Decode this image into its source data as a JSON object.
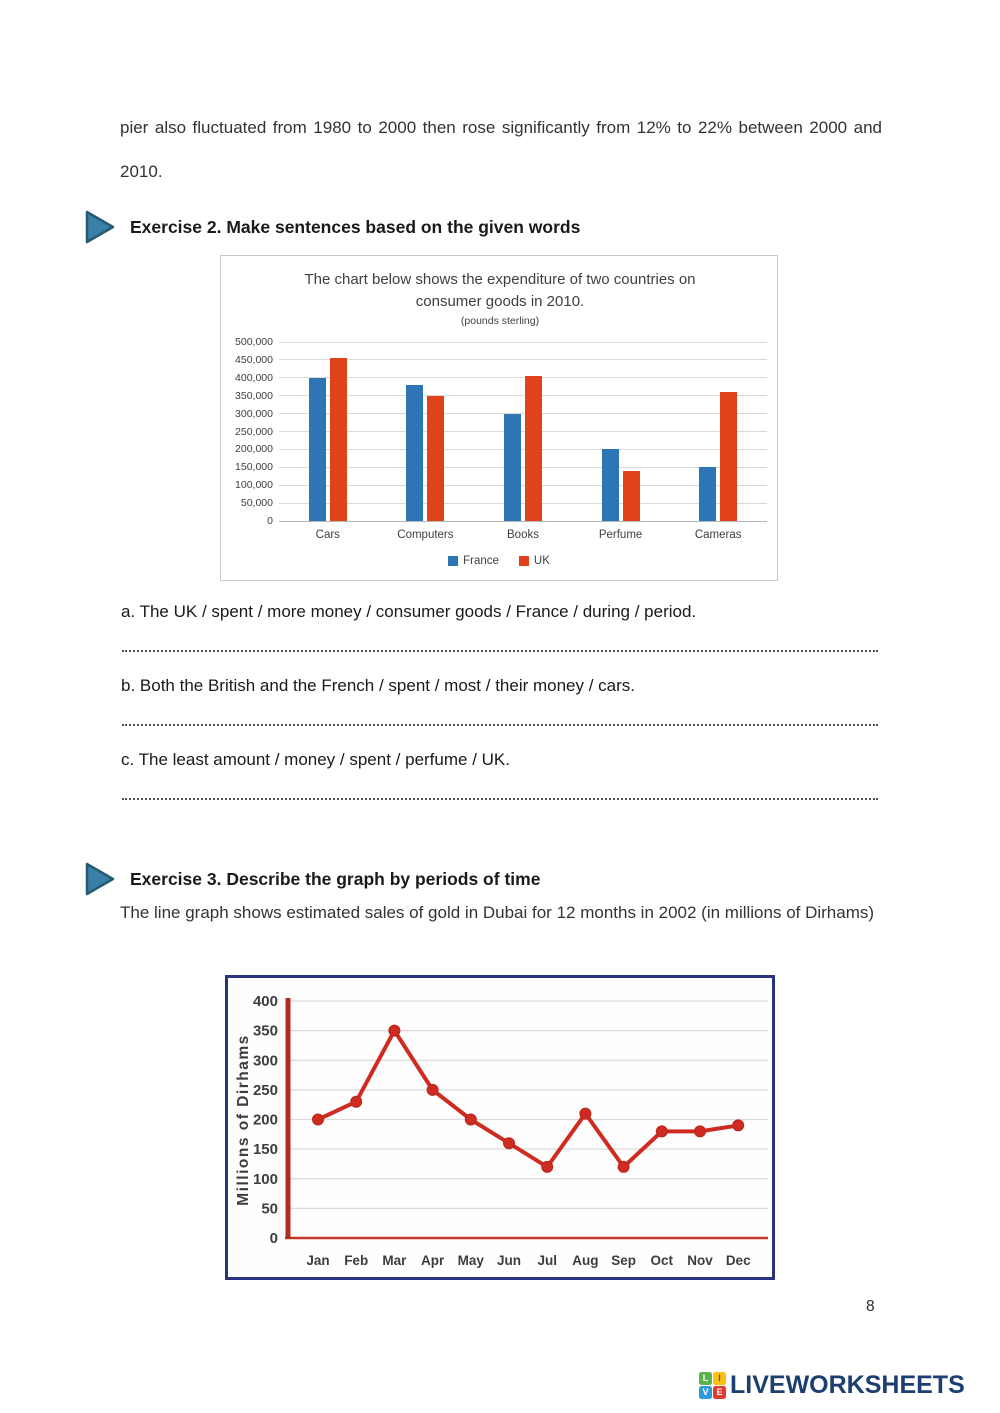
{
  "page": {
    "number": "8"
  },
  "intro": {
    "text": "pier also fluctuated from 1980 to 2000 then rose significantly from 12% to 22% between 2000 and 2010."
  },
  "exercise2": {
    "heading": "Exercise 2. Make sentences based on the given words",
    "questions": [
      {
        "text": "a. The UK / spent / more money / consumer goods / France / during / period."
      },
      {
        "text": "b. Both the British and the French / spent / most / their money / cars."
      },
      {
        "text": "c. The least amount / money / spent / perfume / UK."
      }
    ]
  },
  "exercise3": {
    "heading": "Exercise 3. Describe the graph by periods of time",
    "description": "The line graph shows estimated sales of gold in Dubai for 12 months in 2002 (in millions of Dirhams)"
  },
  "chart_data": [
    {
      "type": "bar",
      "title": "The chart below shows the expenditure of two countries on consumer goods in 2010.",
      "subtitle": "(pounds sterling)",
      "categories": [
        "Cars",
        "Computers",
        "Books",
        "Perfume",
        "Cameras"
      ],
      "series": [
        {
          "name": "France",
          "color": "#2e75b6",
          "values": [
            400000,
            380000,
            300000,
            200000,
            150000
          ]
        },
        {
          "name": "UK",
          "color": "#e0421a",
          "values": [
            455000,
            350000,
            405000,
            140000,
            360000
          ]
        }
      ],
      "xlabel": "",
      "ylabel": "",
      "ylim": [
        0,
        500000
      ],
      "ytick_step": 50000,
      "grid": true,
      "legend_position": "bottom"
    },
    {
      "type": "line",
      "x": [
        "Jan",
        "Feb",
        "Mar",
        "Apr",
        "May",
        "Jun",
        "Jul",
        "Aug",
        "Sep",
        "Oct",
        "Nov",
        "Dec"
      ],
      "values": [
        200,
        230,
        350,
        250,
        200,
        160,
        120,
        210,
        120,
        180,
        180,
        190
      ],
      "title": "",
      "xlabel": "",
      "ylabel": "Millions of Dirhams",
      "ylim": [
        0,
        400
      ],
      "ytick_step": 50,
      "grid": true,
      "line_color": "#d02b20",
      "marker_color": "#d02b20",
      "axis_color": "#b02d22"
    }
  ],
  "footer": {
    "logo_text": "LIVEWORKSHEETS",
    "logo_text_color": "#1c3e70",
    "logo_tiles": [
      {
        "letter": "L",
        "bg": "#5cb24a",
        "fg": "#ffffff"
      },
      {
        "letter": "I",
        "bg": "#fdc00f",
        "fg": "#1565c0"
      },
      {
        "letter": "V",
        "bg": "#2d9bd8",
        "fg": "#ffffff"
      },
      {
        "letter": "E",
        "bg": "#e23c2e",
        "fg": "#ffffff"
      }
    ]
  },
  "accent": {
    "arrow_fill": "#3a7fa6",
    "arrow_stroke": "#265b74"
  }
}
